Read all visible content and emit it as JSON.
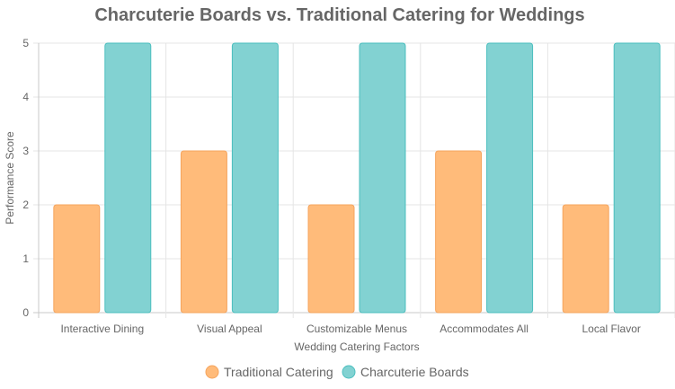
{
  "chart_data": {
    "type": "bar",
    "title": "Charcuterie Boards vs. Traditional Catering for Weddings",
    "xlabel": "Wedding Catering Factors",
    "ylabel": "Performance Score",
    "categories": [
      "Interactive Dining",
      "Visual Appeal",
      "Customizable Menus",
      "Accommodates All",
      "Local Flavor"
    ],
    "ylim": [
      0,
      5
    ],
    "yticks": [
      "0",
      "1",
      "2",
      "3",
      "4",
      "5"
    ],
    "grid": true,
    "legend_position": "bottom",
    "series": [
      {
        "name": "Traditional Catering",
        "values": [
          2,
          3,
          2,
          3,
          2
        ],
        "color": "#ffbb7a",
        "border_color": "#f5a45d"
      },
      {
        "name": "Charcuterie Boards",
        "values": [
          5,
          5,
          5,
          5,
          5
        ],
        "color": "#82d2d2",
        "border_color": "#4bbfbf"
      }
    ]
  }
}
